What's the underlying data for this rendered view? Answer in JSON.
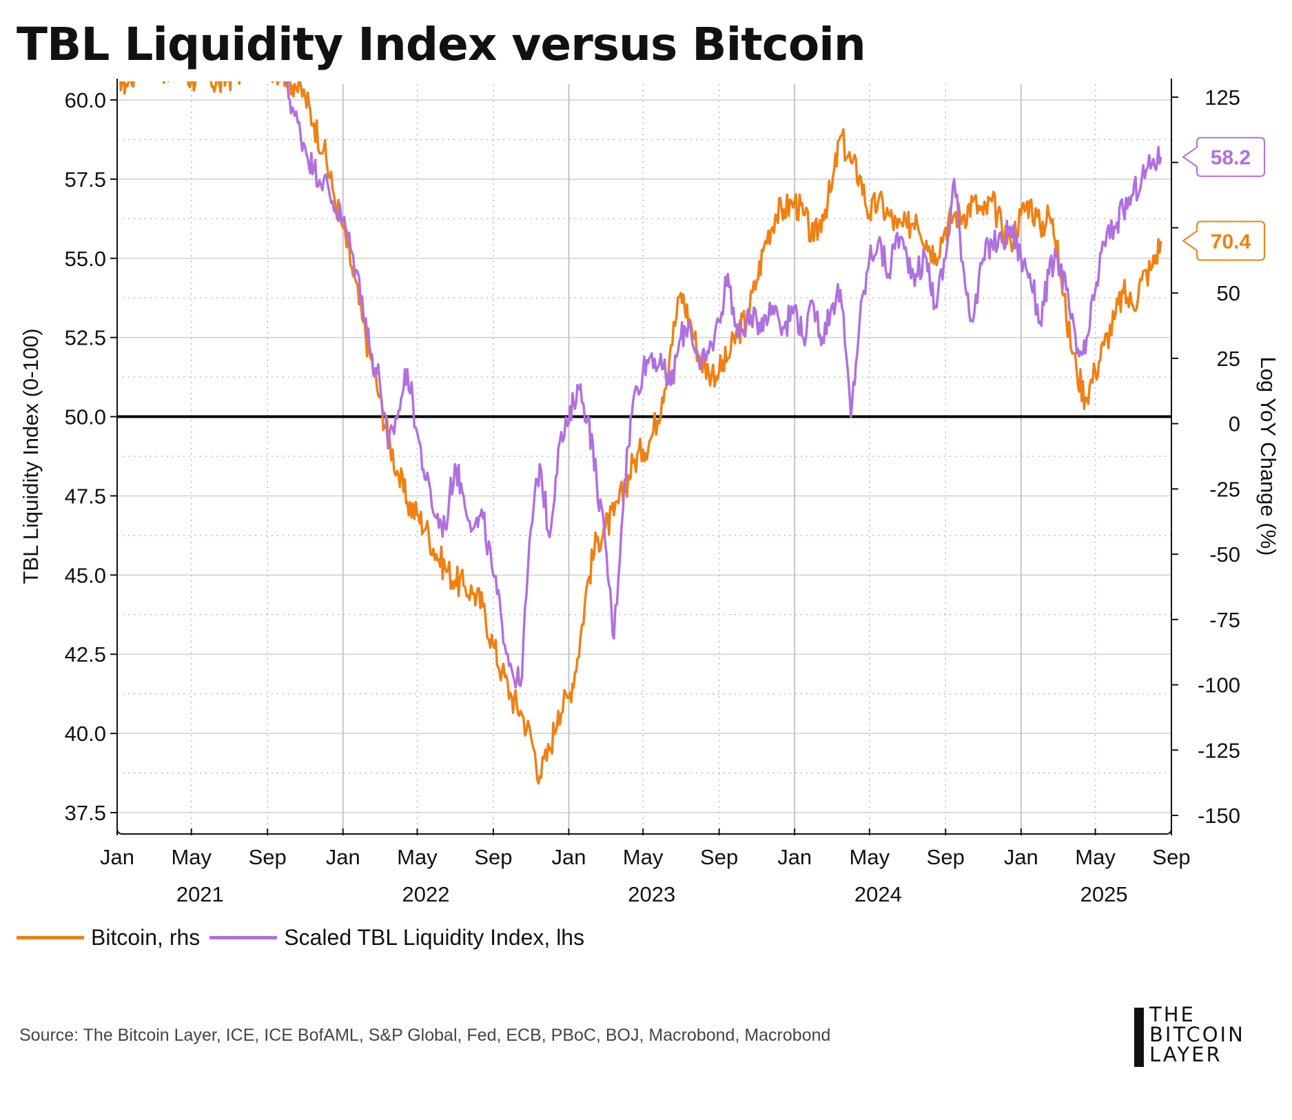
{
  "title": "TBL Liquidity Index versus Bitcoin",
  "source": "Source: The Bitcoin Layer, ICE, ICE BofAML, S&P Global, Fed, ECB, PBoC, BOJ, Macrobond, Macrobond",
  "logo": {
    "line1": "THE",
    "line2": "BITCOIN",
    "line3": "LAYER"
  },
  "legend": [
    {
      "label": "Bitcoin, rhs",
      "color": "#f08012"
    },
    {
      "label": "Scaled TBL Liquidity Index, lhs",
      "color": "#b070e0"
    }
  ],
  "chart_data": {
    "type": "line",
    "title": "TBL Liquidity Index versus Bitcoin",
    "ylabel": "TBL Liquidity Index (0-100)",
    "y2label": "Log YoY Change (%)",
    "ylim": [
      37.0,
      60.5
    ],
    "y2lim": [
      -155,
      130
    ],
    "yticks": [
      "37.5",
      "40.0",
      "42.5",
      "45.0",
      "47.5",
      "50.0",
      "52.5",
      "55.0",
      "57.5",
      "60.0"
    ],
    "y2ticks": [
      "-150",
      "-125",
      "-100",
      "-75",
      "-50",
      "-25",
      "0",
      "25",
      "50",
      "75",
      "100",
      "125"
    ],
    "x_month_ticks": [
      "Jan",
      "May",
      "Sep",
      "Jan",
      "May",
      "Sep",
      "Jan",
      "May",
      "Sep",
      "Jan",
      "May",
      "Sep",
      "Jan",
      "May",
      "Sep"
    ],
    "x_years": [
      "2021",
      "2022",
      "2023",
      "2024",
      "2025"
    ],
    "reference_line": 50.0,
    "grid": true,
    "legend_position": "bottom-left",
    "series": [
      {
        "name": "Bitcoin, rhs",
        "axis": "right",
        "color": "#f08012",
        "x": [
          "2021-01-01",
          "2021-01-15",
          "2021-02-01",
          "2021-02-15",
          "2021-03-01",
          "2021-03-15",
          "2021-04-01",
          "2021-04-15",
          "2021-05-01",
          "2021-05-15",
          "2021-06-01",
          "2021-06-15",
          "2021-07-01",
          "2021-07-15",
          "2021-08-01",
          "2021-08-15",
          "2021-09-01",
          "2021-09-15",
          "2021-10-01",
          "2021-10-15",
          "2021-11-01",
          "2021-11-15",
          "2021-12-01",
          "2021-12-15",
          "2022-01-01",
          "2022-01-15",
          "2022-02-01",
          "2022-02-15",
          "2022-03-01",
          "2022-03-15",
          "2022-04-01",
          "2022-04-15",
          "2022-05-01",
          "2022-05-15",
          "2022-06-01",
          "2022-06-15",
          "2022-07-01",
          "2022-07-15",
          "2022-08-01",
          "2022-08-15",
          "2022-09-01",
          "2022-09-15",
          "2022-10-01",
          "2022-10-15",
          "2022-11-01",
          "2022-11-15",
          "2022-12-01",
          "2022-12-15",
          "2023-01-01",
          "2023-01-15",
          "2023-02-01",
          "2023-02-15",
          "2023-03-01",
          "2023-03-15",
          "2023-04-01",
          "2023-04-15",
          "2023-05-01",
          "2023-05-15",
          "2023-06-01",
          "2023-06-15",
          "2023-07-01",
          "2023-07-15",
          "2023-08-01",
          "2023-08-15",
          "2023-09-01",
          "2023-09-15",
          "2023-10-01",
          "2023-10-15",
          "2023-11-01",
          "2023-11-15",
          "2023-12-01",
          "2023-12-15",
          "2024-01-01",
          "2024-01-15",
          "2024-02-01",
          "2024-02-15",
          "2024-03-01",
          "2024-03-15",
          "2024-04-01",
          "2024-04-15",
          "2024-05-01",
          "2024-05-15",
          "2024-06-01",
          "2024-06-15",
          "2024-07-01",
          "2024-07-15",
          "2024-08-01",
          "2024-08-15",
          "2024-09-01",
          "2024-09-15",
          "2024-10-01",
          "2024-10-15",
          "2024-11-01",
          "2024-11-15",
          "2024-12-01",
          "2024-12-15",
          "2025-01-01",
          "2025-01-15",
          "2025-02-01",
          "2025-02-15",
          "2025-03-01",
          "2025-03-15",
          "2025-04-01",
          "2025-04-15",
          "2025-05-01",
          "2025-05-15",
          "2025-06-01",
          "2025-06-15",
          "2025-07-01",
          "2025-07-15",
          "2025-08-01",
          "2025-08-15"
        ],
        "values": [
          135,
          130,
          135,
          140,
          140,
          135,
          138,
          136,
          132,
          134,
          132,
          130,
          133,
          135,
          137,
          140,
          138,
          136,
          134,
          130,
          125,
          115,
          105,
          90,
          75,
          60,
          40,
          25,
          10,
          -5,
          -20,
          -30,
          -35,
          -40,
          -50,
          -55,
          -60,
          -62,
          -65,
          -70,
          -85,
          -95,
          -105,
          -110,
          -120,
          -135,
          -125,
          -110,
          -105,
          -90,
          -60,
          -45,
          -40,
          -35,
          -25,
          -15,
          -10,
          -5,
          10,
          30,
          50,
          40,
          25,
          20,
          20,
          25,
          35,
          40,
          55,
          70,
          80,
          82,
          85,
          80,
          70,
          80,
          90,
          110,
          100,
          95,
          80,
          85,
          80,
          75,
          75,
          80,
          70,
          65,
          75,
          80,
          80,
          85,
          80,
          85,
          75,
          70,
          80,
          85,
          75,
          80,
          70,
          40,
          20,
          10,
          20,
          30,
          40,
          50,
          45,
          55,
          60,
          70
        ]
      },
      {
        "name": "Scaled TBL Liquidity Index, lhs",
        "axis": "left",
        "color": "#b070e0",
        "x": [
          "2021-10-01",
          "2021-10-15",
          "2021-11-01",
          "2021-11-15",
          "2021-12-01",
          "2021-12-15",
          "2022-01-01",
          "2022-01-15",
          "2022-02-01",
          "2022-02-15",
          "2022-03-01",
          "2022-03-15",
          "2022-04-01",
          "2022-04-15",
          "2022-05-01",
          "2022-05-15",
          "2022-06-01",
          "2022-06-15",
          "2022-07-01",
          "2022-07-15",
          "2022-08-01",
          "2022-08-15",
          "2022-09-01",
          "2022-09-15",
          "2022-10-01",
          "2022-10-15",
          "2022-11-01",
          "2022-11-15",
          "2022-12-01",
          "2022-12-15",
          "2023-01-01",
          "2023-01-15",
          "2023-02-01",
          "2023-02-15",
          "2023-03-01",
          "2023-03-15",
          "2023-04-01",
          "2023-04-15",
          "2023-05-01",
          "2023-05-15",
          "2023-06-01",
          "2023-06-15",
          "2023-07-01",
          "2023-07-15",
          "2023-08-01",
          "2023-08-15",
          "2023-09-01",
          "2023-09-15",
          "2023-10-01",
          "2023-10-15",
          "2023-11-01",
          "2023-11-15",
          "2023-12-01",
          "2023-12-15",
          "2024-01-01",
          "2024-01-15",
          "2024-02-01",
          "2024-02-15",
          "2024-03-01",
          "2024-03-15",
          "2024-04-01",
          "2024-04-15",
          "2024-05-01",
          "2024-05-15",
          "2024-06-01",
          "2024-06-15",
          "2024-07-01",
          "2024-07-15",
          "2024-08-01",
          "2024-08-15",
          "2024-09-01",
          "2024-09-15",
          "2024-10-01",
          "2024-10-15",
          "2024-11-01",
          "2024-11-15",
          "2024-12-01",
          "2024-12-15",
          "2025-01-01",
          "2025-01-15",
          "2025-02-01",
          "2025-02-15",
          "2025-03-01",
          "2025-03-15",
          "2025-04-01",
          "2025-04-15",
          "2025-05-01",
          "2025-05-15",
          "2025-06-01",
          "2025-06-15",
          "2025-07-01",
          "2025-07-15",
          "2025-08-01",
          "2025-08-15"
        ],
        "values": [
          60.5,
          59.5,
          58.5,
          57.8,
          57.5,
          56.8,
          56.2,
          55.2,
          53.8,
          52.0,
          51.2,
          49.0,
          50.2,
          51.5,
          49.5,
          48.0,
          46.8,
          46.5,
          48.5,
          47.5,
          46.5,
          46.8,
          45.0,
          43.5,
          42.0,
          41.5,
          46.5,
          48.5,
          46.2,
          49.0,
          49.8,
          51.0,
          50.0,
          48.0,
          46.0,
          43.0,
          48.0,
          50.5,
          51.5,
          52.0,
          51.5,
          51.0,
          52.5,
          53.0,
          51.5,
          52.0,
          53.0,
          54.5,
          52.5,
          53.0,
          53.0,
          53.2,
          53.5,
          52.8,
          53.5,
          52.5,
          53.5,
          52.5,
          53.5,
          54.0,
          50.0,
          53.0,
          55.0,
          55.5,
          54.5,
          55.8,
          55.0,
          54.5,
          55.0,
          53.5,
          55.0,
          57.5,
          54.5,
          53.0,
          55.0,
          55.5,
          55.5,
          56.0,
          55.0,
          54.5,
          53.0,
          54.5,
          55.0,
          54.0,
          52.0,
          52.0,
          54.0,
          55.5,
          56.0,
          56.5,
          57.0,
          57.5,
          58.0,
          58.2
        ]
      }
    ],
    "last_value_labels": [
      {
        "series": "Scaled TBL Liquidity Index, lhs",
        "text": "58.2",
        "color": "#b070e0"
      },
      {
        "series": "Bitcoin, rhs",
        "text": "70.4",
        "color": "#f08012"
      }
    ]
  }
}
